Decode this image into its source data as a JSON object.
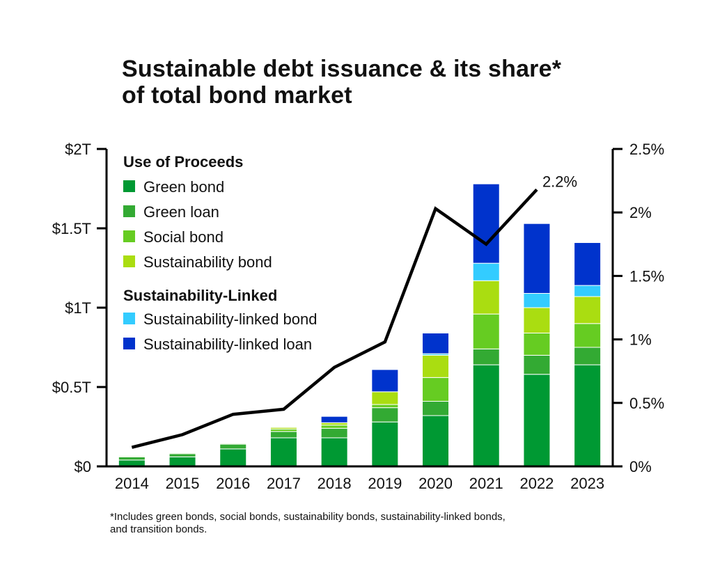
{
  "title": {
    "line1": "Sustainable debt issuance & its share*",
    "line2": "of total bond market"
  },
  "legend": {
    "group1_title": "Use of Proceeds",
    "group2_title": "Sustainability-Linked"
  },
  "footnote": {
    "line1": "*Includes green bonds, social bonds, sustainability bonds, sustainability-linked bonds,",
    "line2": "and transition bonds."
  },
  "chart_data": {
    "type": "bar",
    "stacked": true,
    "categories": [
      "2014",
      "2015",
      "2016",
      "2017",
      "2018",
      "2019",
      "2020",
      "2021",
      "2022",
      "2023"
    ],
    "left_axis": {
      "ticks": [
        "$0",
        "$0.5T",
        "$1T",
        "$1.5T",
        "$2T"
      ],
      "ylim": [
        0,
        2
      ],
      "unit": "trillion USD"
    },
    "right_axis": {
      "ticks": [
        "0%",
        "0.5%",
        "1%",
        "1.5%",
        "2%",
        "2.5%"
      ],
      "ylim": [
        0,
        2.5
      ],
      "unit": "percent"
    },
    "series": [
      {
        "name": "Green bond",
        "group": "Use of Proceeds",
        "color": "#009933",
        "values": [
          0.04,
          0.06,
          0.11,
          0.18,
          0.18,
          0.28,
          0.32,
          0.64,
          0.58,
          0.64
        ]
      },
      {
        "name": "Green loan",
        "group": "Use of Proceeds",
        "color": "#33aa33",
        "values": [
          0.02,
          0.02,
          0.03,
          0.04,
          0.06,
          0.09,
          0.09,
          0.1,
          0.12,
          0.11
        ]
      },
      {
        "name": "Social bond",
        "group": "Use of Proceeds",
        "color": "#66cc22",
        "values": [
          0.005,
          0.005,
          0.005,
          0.015,
          0.02,
          0.02,
          0.15,
          0.22,
          0.14,
          0.15
        ]
      },
      {
        "name": "Sustainability bond",
        "group": "Use of Proceeds",
        "color": "#aadd11",
        "values": [
          0,
          0,
          0,
          0.01,
          0.015,
          0.08,
          0.14,
          0.21,
          0.16,
          0.17
        ]
      },
      {
        "name": "Sustainability-linked bond",
        "group": "Sustainability-Linked",
        "color": "#33ccff",
        "values": [
          0,
          0,
          0,
          0,
          0,
          0,
          0.01,
          0.11,
          0.09,
          0.07
        ]
      },
      {
        "name": "Sustainability-linked loan",
        "group": "Sustainability-Linked",
        "color": "#0033cc",
        "values": [
          0,
          0,
          0,
          0,
          0.04,
          0.14,
          0.13,
          0.5,
          0.44,
          0.27
        ]
      }
    ],
    "share_line": {
      "axis": "right",
      "color": "#000000",
      "values": [
        0.15,
        0.25,
        0.41,
        0.45,
        0.78,
        0.98,
        2.03,
        1.75,
        2.18,
        null
      ],
      "end_label": "2.2%"
    }
  }
}
